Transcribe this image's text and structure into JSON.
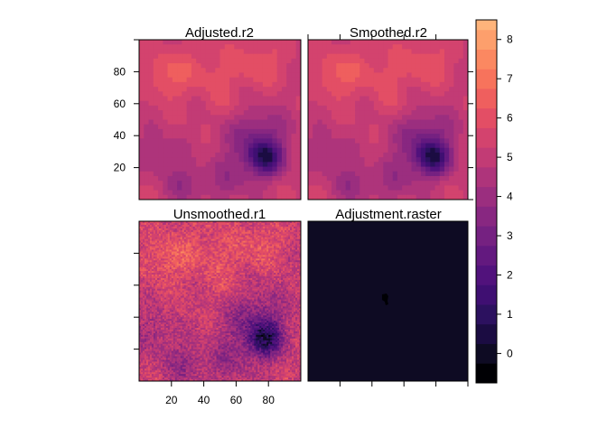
{
  "figure": {
    "panels": [
      {
        "id": "adjusted",
        "title": "Adjusted.r2",
        "kind": "smooth"
      },
      {
        "id": "smoothed",
        "title": "Smoothed.r2",
        "kind": "smooth"
      },
      {
        "id": "unsmoothed",
        "title": "Unsmoothed.r1",
        "kind": "noisy"
      },
      {
        "id": "adjustment",
        "title": "Adjustment.raster",
        "kind": "flat"
      }
    ]
  },
  "chart_data": {
    "type": "heatmap",
    "layout": "2x2 lattice",
    "panels": [
      {
        "title": "Adjusted.r2",
        "xlim": [
          0,
          100
        ],
        "ylim": [
          0,
          100
        ],
        "value_range": [
          1.2,
          7.3
        ]
      },
      {
        "title": "Smoothed.r2",
        "xlim": [
          0,
          100
        ],
        "ylim": [
          0,
          100
        ],
        "value_range": [
          1.2,
          7.3
        ]
      },
      {
        "title": "Unsmoothed.r1",
        "xlim": [
          0,
          100
        ],
        "ylim": [
          0,
          100
        ],
        "value_range": [
          1.0,
          7.8
        ]
      },
      {
        "title": "Adjustment.raster",
        "xlim": [
          0,
          100
        ],
        "ylim": [
          0,
          100
        ],
        "value": 0,
        "spot": {
          "x": 48,
          "y": 52,
          "value": -0.5
        }
      }
    ],
    "x_ticks": [
      20,
      40,
      60,
      80
    ],
    "y_ticks": [
      20,
      40,
      60,
      80
    ],
    "x_tick_labels": [
      "20",
      "40",
      "60",
      "80"
    ],
    "y_tick_labels": [
      "20",
      "40",
      "60",
      "80"
    ],
    "colorbar": {
      "range": [
        -0.75,
        8.5
      ],
      "ticks": [
        0,
        1,
        2,
        3,
        4,
        5,
        6,
        7,
        8
      ],
      "tick_labels": [
        "0",
        "1",
        "2",
        "3",
        "4",
        "5",
        "6",
        "7",
        "8"
      ],
      "palette": "magma",
      "bin_width": 0.5,
      "colors": [
        "#000004",
        "#0e0b23",
        "#1b0c42",
        "#2c115f",
        "#3f0f72",
        "#51127c",
        "#63197f",
        "#752181",
        "#882781",
        "#9b2e7f",
        "#ae347b",
        "#c23b75",
        "#d3436e",
        "#e34e65",
        "#ef5f5e",
        "#f7735c",
        "#fb8861",
        "#fd9f6c",
        "#feb47b",
        "#fec98d",
        "#fddea0",
        "#fcf3b4"
      ]
    }
  }
}
